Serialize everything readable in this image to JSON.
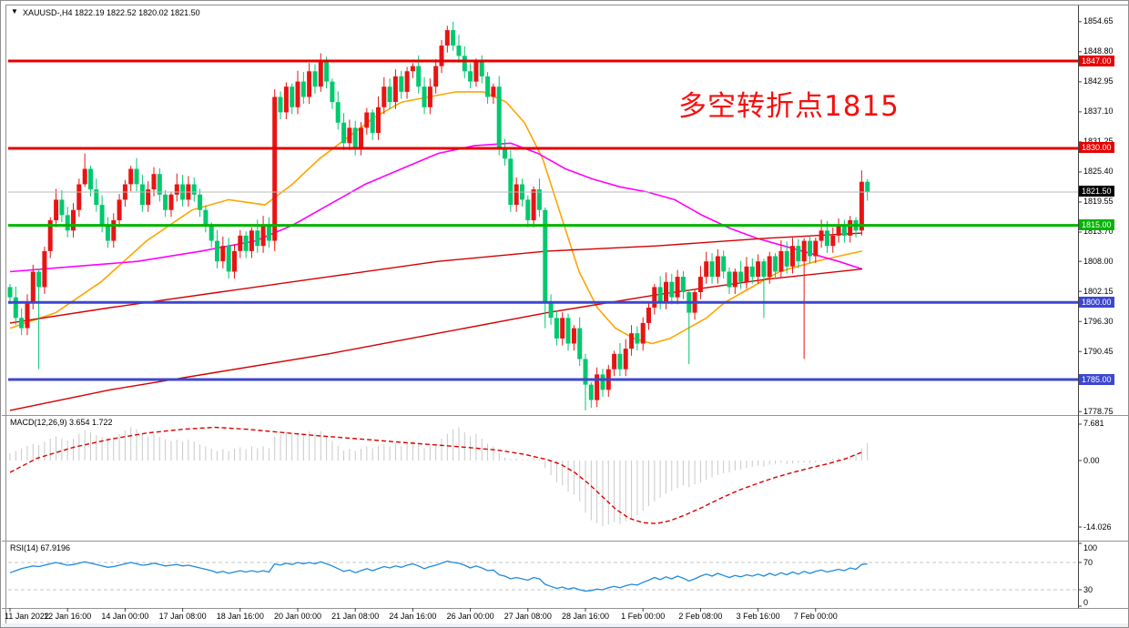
{
  "title": {
    "text": "XAUUSD-,H4  1822.19 1822.52 1820.02 1821.50",
    "collapse_icon": "▼"
  },
  "annotation": {
    "text": "多空转折点1815",
    "color": "#f50f0f"
  },
  "chart_data": {
    "type": "candlestick",
    "symbol": "XAUUSD-",
    "timeframe": "H4",
    "ohlc_display": {
      "open": 1822.19,
      "high": 1822.52,
      "low": 1820.02,
      "close": 1821.5
    },
    "y_axis_labels": [
      "1854.65",
      "1848.80",
      "1842.95",
      "1837.10",
      "1831.25",
      "1825.40",
      "1819.55",
      "1813.70",
      "1808.00",
      "1802.15",
      "1796.30",
      "1790.45",
      "1778.75"
    ],
    "y_axis_prices": [
      1854.65,
      1848.8,
      1842.95,
      1837.1,
      1831.25,
      1825.4,
      1819.55,
      1813.7,
      1808.0,
      1802.15,
      1796.3,
      1790.45,
      1778.75
    ],
    "price_lines": [
      {
        "label": "1847.00",
        "price": 1847.0,
        "color": "#e60000"
      },
      {
        "label": "1830.00",
        "price": 1830.0,
        "color": "#e60000"
      },
      {
        "label": "1815.00",
        "price": 1815.0,
        "color": "#00b400"
      },
      {
        "label": "1800.00",
        "price": 1800.0,
        "color": "#3d47cf"
      },
      {
        "label": "1785.00",
        "price": 1785.0,
        "color": "#3d47cf"
      }
    ],
    "current_price": {
      "label": "1821.50",
      "value": 1821.5,
      "line_color": "#b9b9b9",
      "badge_color": "#000000"
    },
    "candles": {
      "up_color": "#e81414",
      "down_color": "#00c96e",
      "first_open": 1803,
      "closes": [
        1801,
        1797,
        1795,
        1800,
        1806,
        1803,
        1810,
        1816,
        1820,
        1817,
        1814,
        1818,
        1823,
        1826,
        1822,
        1819,
        1815,
        1812,
        1816,
        1820,
        1823,
        1826,
        1823,
        1819,
        1822,
        1825,
        1821,
        1818,
        1821,
        1823,
        1820,
        1823,
        1821,
        1818,
        1815,
        1812,
        1808,
        1811,
        1806,
        1810,
        1813,
        1810,
        1814,
        1811,
        1815,
        1812,
        1840,
        1837,
        1842,
        1838,
        1843,
        1840,
        1845,
        1842,
        1847,
        1843,
        1839,
        1835,
        1831,
        1834,
        1830,
        1834,
        1837,
        1833,
        1838,
        1842,
        1839,
        1844,
        1841,
        1845,
        1846,
        1842,
        1838,
        1842,
        1846,
        1850,
        1853,
        1850,
        1848,
        1845,
        1843,
        1847,
        1844,
        1840,
        1842,
        1830,
        1828,
        1819,
        1823,
        1820,
        1816,
        1822,
        1818,
        1800,
        1797,
        1793,
        1797,
        1792,
        1795,
        1789,
        1784,
        1781,
        1786,
        1783,
        1787,
        1790,
        1787,
        1791,
        1794,
        1792,
        1796,
        1799,
        1803,
        1800,
        1804,
        1801,
        1805,
        1802,
        1798,
        1802,
        1805,
        1808,
        1805,
        1809,
        1806,
        1803,
        1806,
        1804,
        1807,
        1805,
        1808,
        1805,
        1809,
        1806,
        1810,
        1807,
        1811,
        1808,
        1812,
        1809,
        1812,
        1814,
        1811,
        1813,
        1815,
        1813,
        1816,
        1814,
        1823.5,
        1821.5
      ],
      "wick_overrides": {
        "5": [
          0.5,
          16
        ],
        "13": [
          3,
          0.5
        ],
        "46": [
          1.5,
          2
        ],
        "54": [
          1.5,
          1
        ],
        "77": [
          1.65,
          1
        ],
        "81": [
          0.5,
          1
        ],
        "93": [
          0.5,
          5
        ],
        "100": [
          1,
          5
        ],
        "101": [
          0.5,
          1.5
        ],
        "118": [
          0.5,
          10
        ],
        "131": [
          0.5,
          8
        ],
        "138": [
          0.5,
          19
        ],
        "148": [
          2.2,
          1
        ],
        "149": [
          0.5,
          1.7
        ]
      }
    },
    "moving_averages": [
      {
        "name": "ma-orange",
        "color": "#ffa500",
        "width": 1.6,
        "points": [
          [
            10,
            1795
          ],
          [
            60,
            1798
          ],
          [
            110,
            1804
          ],
          [
            160,
            1812
          ],
          [
            210,
            1818
          ],
          [
            250,
            1820
          ],
          [
            290,
            1819
          ],
          [
            320,
            1823
          ],
          [
            350,
            1828
          ],
          [
            380,
            1832
          ],
          [
            410,
            1836
          ],
          [
            440,
            1839
          ],
          [
            470,
            1840
          ],
          [
            500,
            1841
          ],
          [
            530,
            1841
          ],
          [
            555,
            1839
          ],
          [
            575,
            1835
          ],
          [
            595,
            1828
          ],
          [
            615,
            1817
          ],
          [
            635,
            1806
          ],
          [
            655,
            1799
          ],
          [
            675,
            1795
          ],
          [
            695,
            1793
          ],
          [
            715,
            1792
          ],
          [
            735,
            1793
          ],
          [
            755,
            1795
          ],
          [
            775,
            1797
          ],
          [
            795,
            1800
          ],
          [
            815,
            1802
          ],
          [
            835,
            1804
          ],
          [
            855,
            1806
          ],
          [
            875,
            1807
          ],
          [
            895,
            1808
          ],
          [
            920,
            1809
          ],
          [
            946,
            1810
          ]
        ]
      },
      {
        "name": "ma-magenta",
        "color": "#ff00ff",
        "width": 1.6,
        "points": [
          [
            10,
            1806
          ],
          [
            80,
            1807
          ],
          [
            150,
            1808
          ],
          [
            220,
            1810
          ],
          [
            280,
            1812
          ],
          [
            320,
            1815
          ],
          [
            360,
            1819
          ],
          [
            400,
            1823
          ],
          [
            440,
            1826
          ],
          [
            480,
            1829
          ],
          [
            520,
            1830.5
          ],
          [
            560,
            1831
          ],
          [
            590,
            1829
          ],
          [
            620,
            1826
          ],
          [
            650,
            1824
          ],
          [
            680,
            1822.5
          ],
          [
            710,
            1821.5
          ],
          [
            740,
            1820
          ],
          [
            770,
            1817
          ],
          [
            800,
            1814.5
          ],
          [
            830,
            1812.5
          ],
          [
            860,
            1811
          ],
          [
            890,
            1809.5
          ],
          [
            920,
            1808
          ],
          [
            946,
            1806.5
          ]
        ]
      },
      {
        "name": "ma-red-fast",
        "color": "#d40000",
        "width": 1.4,
        "points": [
          [
            10,
            1796
          ],
          [
            120,
            1799
          ],
          [
            240,
            1802
          ],
          [
            360,
            1805
          ],
          [
            480,
            1808
          ],
          [
            600,
            1810
          ],
          [
            720,
            1811
          ],
          [
            840,
            1812.5
          ],
          [
            946,
            1813.5
          ]
        ]
      },
      {
        "name": "ma-red-slow",
        "color": "#d40000",
        "width": 1.4,
        "points": [
          [
            10,
            1779
          ],
          [
            120,
            1783
          ],
          [
            240,
            1786.5
          ],
          [
            360,
            1790
          ],
          [
            480,
            1794
          ],
          [
            600,
            1798
          ],
          [
            720,
            1801.5
          ],
          [
            840,
            1804.5
          ],
          [
            946,
            1806.5
          ]
        ]
      }
    ],
    "macd": {
      "label": "MACD(12,26,9) 3.654 1.722",
      "values_display": [
        3.654,
        1.722
      ],
      "axis_labels": [
        "7.681",
        "0.00",
        "-14.026"
      ],
      "axis_values": [
        7.681,
        0,
        -14.026
      ],
      "hist_color": "#c9c9c9",
      "signal_color": "#dd0000",
      "histogram": [
        1.5,
        2.0,
        2.6,
        3.1,
        3.5,
        3.2,
        4.0,
        4.6,
        5.1,
        4.6,
        4.2,
        4.6,
        5.6,
        6.4,
        6.0,
        5.4,
        5.0,
        4.6,
        5.0,
        5.6,
        6.4,
        7.0,
        6.6,
        5.6,
        5.1,
        5.5,
        5.0,
        4.5,
        4.1,
        4.4,
        4.0,
        4.4,
        4.0,
        3.4,
        3.0,
        2.5,
        2.0,
        2.4,
        2.0,
        2.5,
        2.8,
        2.4,
        3.0,
        2.6,
        3.0,
        2.6,
        5.1,
        5.5,
        6.1,
        5.6,
        6.0,
        5.6,
        6.1,
        5.7,
        6.2,
        5.2,
        4.1,
        3.1,
        2.1,
        2.5,
        2.0,
        2.5,
        3.0,
        2.6,
        3.1,
        3.5,
        3.0,
        3.6,
        3.1,
        3.6,
        4.1,
        3.6,
        2.6,
        3.0,
        3.6,
        4.6,
        5.6,
        6.6,
        7.0,
        6.0,
        5.1,
        5.6,
        4.6,
        3.6,
        3.0,
        1.6,
        0.6,
        0.3,
        0.4,
        0.2,
        0.2,
        0.6,
        0.3,
        -1.6,
        -3.1,
        -4.6,
        -5.2,
        -6.6,
        -7.2,
        -8.6,
        -11.0,
        -12.6,
        -13.2,
        -13.8,
        -13.5,
        -13.0,
        -13.4,
        -12.8,
        -12.2,
        -11.6,
        -10.6,
        -9.6,
        -8.6,
        -7.8,
        -7.0,
        -6.4,
        -5.8,
        -5.2,
        -5.6,
        -5.0,
        -4.6,
        -4.1,
        -3.6,
        -3.1,
        -2.7,
        -2.5,
        -2.1,
        -1.9,
        -1.6,
        -1.3,
        -1.1,
        -1.3,
        -0.9,
        -0.7,
        -0.5,
        -0.8,
        -0.6,
        -0.5,
        -0.4,
        -0.6,
        -0.4,
        -0.2,
        0.2,
        0.4,
        0.6,
        0.5,
        0.9,
        1.3,
        2.6,
        3.7
      ],
      "signal_points": [
        [
          10,
          -2.5
        ],
        [
          40,
          0.5
        ],
        [
          80,
          2.8
        ],
        [
          120,
          4.5
        ],
        [
          160,
          5.8
        ],
        [
          200,
          6.6
        ],
        [
          235,
          7.0
        ],
        [
          270,
          6.6
        ],
        [
          310,
          5.9
        ],
        [
          350,
          5.2
        ],
        [
          390,
          4.6
        ],
        [
          430,
          4.0
        ],
        [
          470,
          3.4
        ],
        [
          510,
          2.8
        ],
        [
          545,
          2.2
        ],
        [
          575,
          1.3
        ],
        [
          600,
          0.2
        ],
        [
          615,
          -0.8
        ],
        [
          630,
          -2.5
        ],
        [
          645,
          -4.8
        ],
        [
          660,
          -7.5
        ],
        [
          675,
          -10.2
        ],
        [
          690,
          -12.2
        ],
        [
          705,
          -13.1
        ],
        [
          720,
          -13.3
        ],
        [
          735,
          -12.7
        ],
        [
          750,
          -11.6
        ],
        [
          770,
          -9.9
        ],
        [
          790,
          -8.0
        ],
        [
          810,
          -6.3
        ],
        [
          830,
          -4.9
        ],
        [
          850,
          -3.6
        ],
        [
          870,
          -2.5
        ],
        [
          890,
          -1.5
        ],
        [
          910,
          -0.6
        ],
        [
          928,
          0.4
        ],
        [
          945,
          1.7
        ]
      ]
    },
    "rsi": {
      "label": "RSI(14) 67.9196",
      "current_value": 67.9196,
      "axis_labels": [
        "100",
        "70",
        "30",
        "0"
      ],
      "axis_values": [
        100,
        70,
        30,
        0
      ],
      "level_lines": [
        70,
        30
      ],
      "line_color": "#1e8ade",
      "level_color": "#c4c4c4",
      "values": [
        55,
        58,
        61,
        63,
        65,
        64,
        66,
        68,
        70,
        68,
        66,
        67,
        69,
        71,
        69,
        67,
        65,
        63,
        64,
        66,
        68,
        70,
        68,
        66,
        67,
        69,
        67,
        65,
        66,
        67,
        65,
        66,
        64,
        62,
        60,
        58,
        55,
        57,
        54,
        56,
        58,
        56,
        58,
        56,
        58,
        56,
        68,
        66,
        69,
        67,
        70,
        68,
        70,
        68,
        71,
        68,
        65,
        61,
        57,
        59,
        55,
        58,
        61,
        58,
        61,
        64,
        62,
        65,
        63,
        66,
        68,
        65,
        61,
        64,
        66,
        69,
        72,
        70,
        69,
        66,
        62,
        65,
        62,
        58,
        59,
        52,
        50,
        46,
        48,
        46,
        44,
        48,
        46,
        38,
        35,
        32,
        34,
        31,
        33,
        30,
        28,
        29,
        31,
        30,
        33,
        35,
        33,
        36,
        38,
        37,
        41,
        44,
        48,
        45,
        49,
        46,
        50,
        47,
        43,
        46,
        50,
        53,
        50,
        54,
        51,
        48,
        51,
        49,
        52,
        50,
        53,
        50,
        54,
        51,
        55,
        52,
        56,
        53,
        57,
        54,
        57,
        59,
        56,
        58,
        60,
        58,
        62,
        60,
        67,
        68
      ]
    },
    "x_axis": {
      "labels": [
        "11 Jan 2022",
        "12 Jan 16:00",
        "14 Jan 00:00",
        "17 Jan 08:00",
        "18 Jan 16:00",
        "20 Jan 00:00",
        "21 Jan 08:00",
        "24 Jan 16:00",
        "26 Jan 00:00",
        "27 Jan 08:00",
        "28 Jan 16:00",
        "1 Feb 00:00",
        "2 Feb 08:00",
        "3 Feb 16:00",
        "7 Feb 00:00"
      ]
    }
  }
}
